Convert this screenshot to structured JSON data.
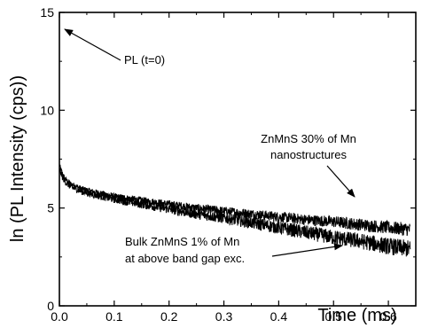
{
  "chart_data": {
    "type": "line",
    "xlabel": "Time (ms)",
    "ylabel": "ln (PL Intensity (cps))",
    "xlim": [
      0.0,
      0.65
    ],
    "ylim": [
      0,
      15
    ],
    "xticks": [
      "0.0",
      "0.1",
      "0.2",
      "0.3",
      "0.4",
      "0.5",
      "0.6"
    ],
    "yticks": [
      "0",
      "5",
      "10",
      "15"
    ],
    "grid": false,
    "series": [
      {
        "name": "ZnMnS 30% of Mn nanostructures",
        "x": [
          0.0,
          0.005,
          0.01,
          0.02,
          0.04,
          0.06,
          0.1,
          0.15,
          0.2,
          0.25,
          0.3,
          0.35,
          0.4,
          0.45,
          0.5,
          0.55,
          0.6,
          0.64
        ],
        "y": [
          7.2,
          6.8,
          6.5,
          6.25,
          6.0,
          5.85,
          5.6,
          5.4,
          5.2,
          5.0,
          4.85,
          4.7,
          4.55,
          4.4,
          4.3,
          4.15,
          4.0,
          3.9
        ],
        "noise": 0.35
      },
      {
        "name": "Bulk ZnMnS 1% of Mn at above band gap exc.",
        "x": [
          0.0,
          0.005,
          0.01,
          0.02,
          0.04,
          0.06,
          0.1,
          0.15,
          0.2,
          0.25,
          0.3,
          0.35,
          0.4,
          0.45,
          0.5,
          0.55,
          0.6,
          0.64
        ],
        "y": [
          7.0,
          6.6,
          6.35,
          6.1,
          5.85,
          5.7,
          5.45,
          5.2,
          4.95,
          4.7,
          4.5,
          4.25,
          4.0,
          3.75,
          3.5,
          3.3,
          3.05,
          2.9
        ],
        "noise": 0.45
      }
    ],
    "annotations": [
      {
        "id": "pl0",
        "lines": [
          "PL (t=0)"
        ]
      },
      {
        "id": "nano",
        "lines": [
          "ZnMnS 30% of Mn",
          "nanostructures"
        ]
      },
      {
        "id": "bulk",
        "lines": [
          "Bulk  ZnMnS 1% of Mn",
          "at above band gap exc."
        ]
      }
    ]
  }
}
